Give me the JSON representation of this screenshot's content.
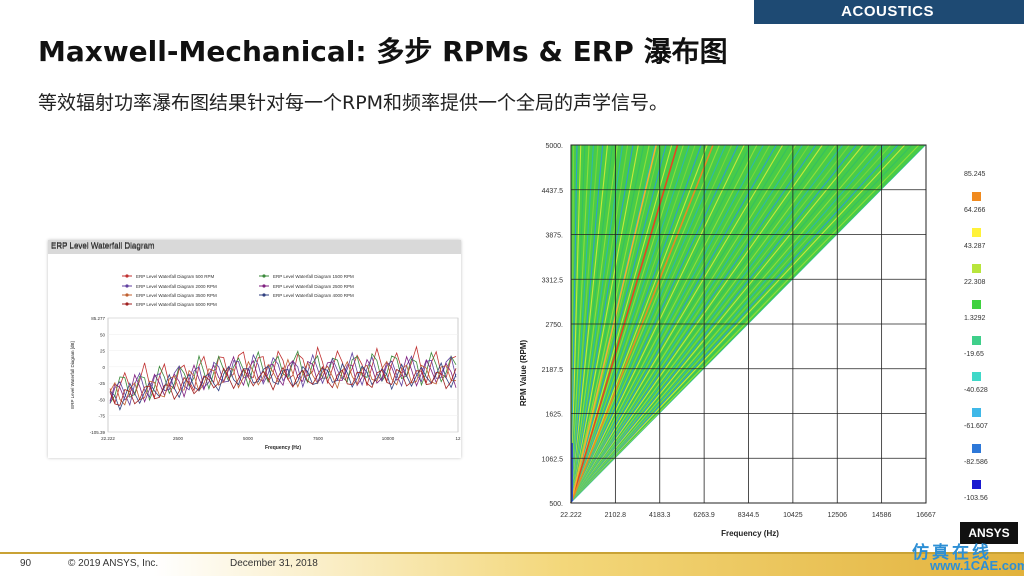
{
  "header": {
    "section_tab": "ACOUSTICS"
  },
  "slide": {
    "title": "Maxwell-Mechanical: 多步 RPMs & ERP 瀑布图",
    "subtitle": "等效辐射功率瀑布图结果针对每一个RPM和频率提供一个全局的声学信号。"
  },
  "left_chart": {
    "window_title": "ERP Level Waterfall Diagram",
    "legend": [
      "ERP Level Waterfall Diagram 500 RPM",
      "ERP Level Waterfall Diagram 1500 RPM",
      "ERP Level Waterfall Diagram 2000 RPM",
      "ERP Level Waterfall Diagram 2500 RPM",
      "ERP Level Waterfall Diagram 3500 RPM",
      "ERP Level Waterfall Diagram 4000 RPM",
      "ERP Level Waterfall Diagram 5000 RPM"
    ],
    "ylabel": "ERP Level Waterfall Diagram [dB]",
    "xlabel": "Frequency (Hz)",
    "y_ticks": [
      "85.277",
      "50",
      "25",
      "0",
      "-25",
      "-50",
      "-75",
      "-105.39"
    ],
    "x_ticks": [
      "22.222",
      "2500",
      "5000",
      "7500",
      "10000",
      "12"
    ]
  },
  "chart_data": {
    "type": "heatmap",
    "xlabel": "Frequency (Hz)",
    "ylabel": "RPM Value (RPM)",
    "x_ticks": [
      "22.222",
      "2102.8",
      "4183.3",
      "6263.9",
      "8344.5",
      "10425",
      "12506",
      "14586",
      "16667"
    ],
    "y_ticks": [
      "500.",
      "1062.5",
      "1625.",
      "2187.5",
      "2750.",
      "3312.5",
      "3875.",
      "4437.5",
      "5000."
    ],
    "xlim": [
      22.222,
      16667
    ],
    "ylim": [
      500,
      5000
    ],
    "legend_values": [
      "85.245",
      "64.266",
      "43.287",
      "22.308",
      "1.3292",
      "-19.65",
      "-40.628",
      "-61.607",
      "-82.586",
      "-103.56"
    ],
    "legend_colors": [
      "#e11b1b",
      "#f08a1e",
      "#fff23a",
      "#b8e53c",
      "#3fd23f",
      "#3fcf8a",
      "#3fd8c8",
      "#3fb8e8",
      "#2d78d8",
      "#1a1ad0"
    ]
  },
  "footer": {
    "page_number": "90",
    "copyright": "© 2019 ANSYS, Inc.",
    "date": "December 31, 2018",
    "logo": "ANSYS",
    "watermark_cn": "仿真在线",
    "watermark_url": "www.1CAE.com"
  }
}
